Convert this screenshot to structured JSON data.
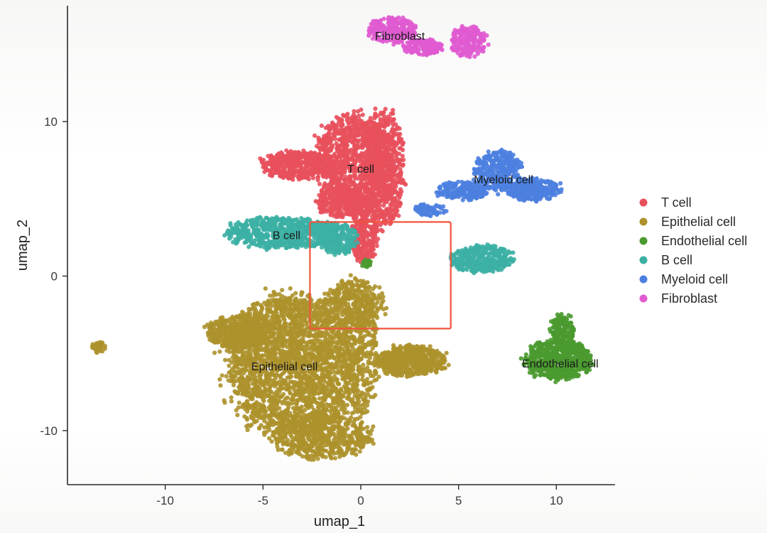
{
  "chart_data": {
    "type": "scatter",
    "title": "",
    "xlabel": "umap_1",
    "ylabel": "umap_2",
    "xlim": [
      -15,
      13
    ],
    "ylim": [
      -13.5,
      17.5
    ],
    "x_ticks": [
      -10,
      -5,
      0,
      5,
      10
    ],
    "y_ticks": [
      -10,
      0,
      10
    ],
    "grid": false,
    "legend_position": "right",
    "series": [
      {
        "name": "T cell",
        "color": "#e8505c",
        "label": "T cell",
        "label_at": [
          0,
          6.7
        ],
        "regions": [
          {
            "cx": -0.4,
            "cy": 7.5,
            "rx": 1.9,
            "ry": 2.9,
            "n": 950
          },
          {
            "cx": 1.2,
            "cy": 7.0,
            "rx": 1.0,
            "ry": 3.6,
            "n": 650
          },
          {
            "cx": -3.2,
            "cy": 7.2,
            "rx": 1.8,
            "ry": 0.9,
            "n": 450
          },
          {
            "cx": -1.0,
            "cy": 4.8,
            "rx": 1.2,
            "ry": 1.0,
            "n": 300
          },
          {
            "cx": 0.2,
            "cy": 3.0,
            "rx": 0.7,
            "ry": 2.2,
            "n": 350
          }
        ]
      },
      {
        "name": "Epithelial cell",
        "color": "#ad922c",
        "label": "Epithelial cell",
        "label_at": [
          -3.9,
          -6.1
        ],
        "regions": [
          {
            "cx": -3.5,
            "cy": -5.8,
            "rx": 3.3,
            "ry": 4.5,
            "n": 2400
          },
          {
            "cx": -6.4,
            "cy": -3.6,
            "rx": 1.5,
            "ry": 1.0,
            "n": 450
          },
          {
            "cx": -2.0,
            "cy": -10.4,
            "rx": 2.6,
            "ry": 1.4,
            "n": 550
          },
          {
            "cx": 0.0,
            "cy": -5.0,
            "rx": 0.9,
            "ry": 4.0,
            "n": 350
          },
          {
            "cx": -0.4,
            "cy": -1.8,
            "rx": 1.5,
            "ry": 1.6,
            "n": 350
          },
          {
            "cx": 2.6,
            "cy": -5.5,
            "rx": 1.7,
            "ry": 1.0,
            "n": 520
          },
          {
            "cx": -13.4,
            "cy": -4.6,
            "rx": 0.35,
            "ry": 0.35,
            "n": 45
          }
        ]
      },
      {
        "name": "Endothelial cell",
        "color": "#4a9a30",
        "label": "Endothelial cell",
        "label_at": [
          10.2,
          -5.9
        ],
        "regions": [
          {
            "cx": 10.1,
            "cy": -5.4,
            "rx": 1.6,
            "ry": 1.3,
            "n": 650
          },
          {
            "cx": 10.3,
            "cy": -3.5,
            "rx": 0.6,
            "ry": 1.0,
            "n": 150
          },
          {
            "cx": 0.3,
            "cy": 0.8,
            "rx": 0.25,
            "ry": 0.25,
            "n": 25
          }
        ]
      },
      {
        "name": "B cell",
        "color": "#3cb0a4",
        "label": "B cell",
        "label_at": [
          -3.8,
          2.4
        ],
        "regions": [
          {
            "cx": -4.0,
            "cy": 2.8,
            "rx": 2.8,
            "ry": 1.0,
            "n": 650
          },
          {
            "cx": -1.2,
            "cy": 2.4,
            "rx": 1.0,
            "ry": 1.0,
            "n": 200
          },
          {
            "cx": 6.2,
            "cy": 1.1,
            "rx": 1.5,
            "ry": 0.9,
            "n": 330
          }
        ]
      },
      {
        "name": "Myeloid cell",
        "color": "#4c80e0",
        "label": "Myeloid cell",
        "label_at": [
          7.3,
          6.0
        ],
        "regions": [
          {
            "cx": 7.0,
            "cy": 6.8,
            "rx": 1.2,
            "ry": 1.3,
            "n": 330
          },
          {
            "cx": 8.8,
            "cy": 5.6,
            "rx": 1.3,
            "ry": 0.7,
            "n": 280
          },
          {
            "cx": 5.2,
            "cy": 5.5,
            "rx": 1.3,
            "ry": 0.6,
            "n": 200
          },
          {
            "cx": 3.5,
            "cy": 4.3,
            "rx": 0.8,
            "ry": 0.4,
            "n": 80
          }
        ]
      },
      {
        "name": "Fibroblast",
        "color": "#e05ad0",
        "label": "Fibroblast",
        "label_at": [
          2.0,
          15.3
        ],
        "regions": [
          {
            "cx": 1.6,
            "cy": 15.9,
            "rx": 1.2,
            "ry": 0.8,
            "n": 240
          },
          {
            "cx": 3.2,
            "cy": 14.8,
            "rx": 1.0,
            "ry": 0.5,
            "n": 150
          },
          {
            "cx": 5.5,
            "cy": 15.2,
            "rx": 0.9,
            "ry": 1.0,
            "n": 200
          }
        ]
      }
    ],
    "annotations": [
      {
        "type": "rectangle",
        "x0": -2.6,
        "x1": 4.6,
        "y0": -3.4,
        "y1": 3.5,
        "color": "#f0543c"
      }
    ]
  },
  "legend": {
    "items": [
      {
        "label": "T cell",
        "color": "#e8505c"
      },
      {
        "label": "Epithelial cell",
        "color": "#ad922c"
      },
      {
        "label": "Endothelial cell",
        "color": "#4a9a30"
      },
      {
        "label": "B cell",
        "color": "#3cb0a4"
      },
      {
        "label": "Myeloid cell",
        "color": "#4c80e0"
      },
      {
        "label": "Fibroblast",
        "color": "#e05ad0"
      }
    ]
  }
}
